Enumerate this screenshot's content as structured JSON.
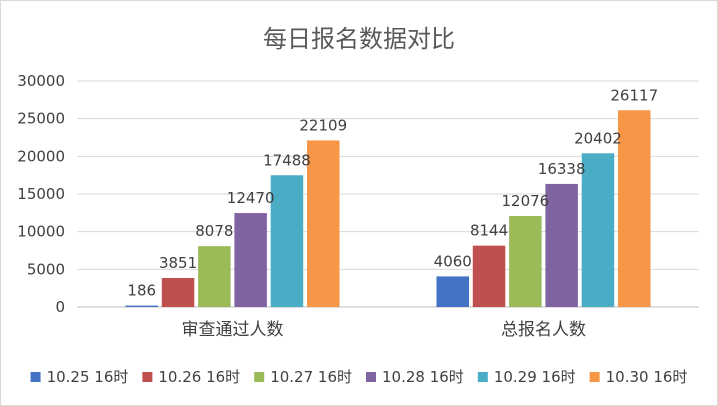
{
  "chart_data": {
    "type": "bar",
    "title": "每日报名数据对比",
    "categories": [
      "审查通过人数",
      "总报名人数"
    ],
    "series": [
      {
        "name": "10.25 16时",
        "color": "#4472c4",
        "values": [
          186,
          4060
        ]
      },
      {
        "name": "10.26 16时",
        "color": "#c0504d",
        "values": [
          3851,
          8144
        ]
      },
      {
        "name": "10.27 16时",
        "color": "#9bbb59",
        "values": [
          8078,
          12076
        ]
      },
      {
        "name": "10.28 16时",
        "color": "#8064a2",
        "values": [
          12470,
          16338
        ]
      },
      {
        "name": "10.29 16时",
        "color": "#4bacc6",
        "values": [
          17488,
          20402
        ]
      },
      {
        "name": "10.30 16时",
        "color": "#f79646",
        "values": [
          22109,
          26117
        ]
      }
    ],
    "ylim": [
      0,
      30000
    ],
    "yticks": [
      0,
      5000,
      10000,
      15000,
      20000,
      25000,
      30000
    ],
    "grid": true,
    "legend_position": "bottom"
  }
}
